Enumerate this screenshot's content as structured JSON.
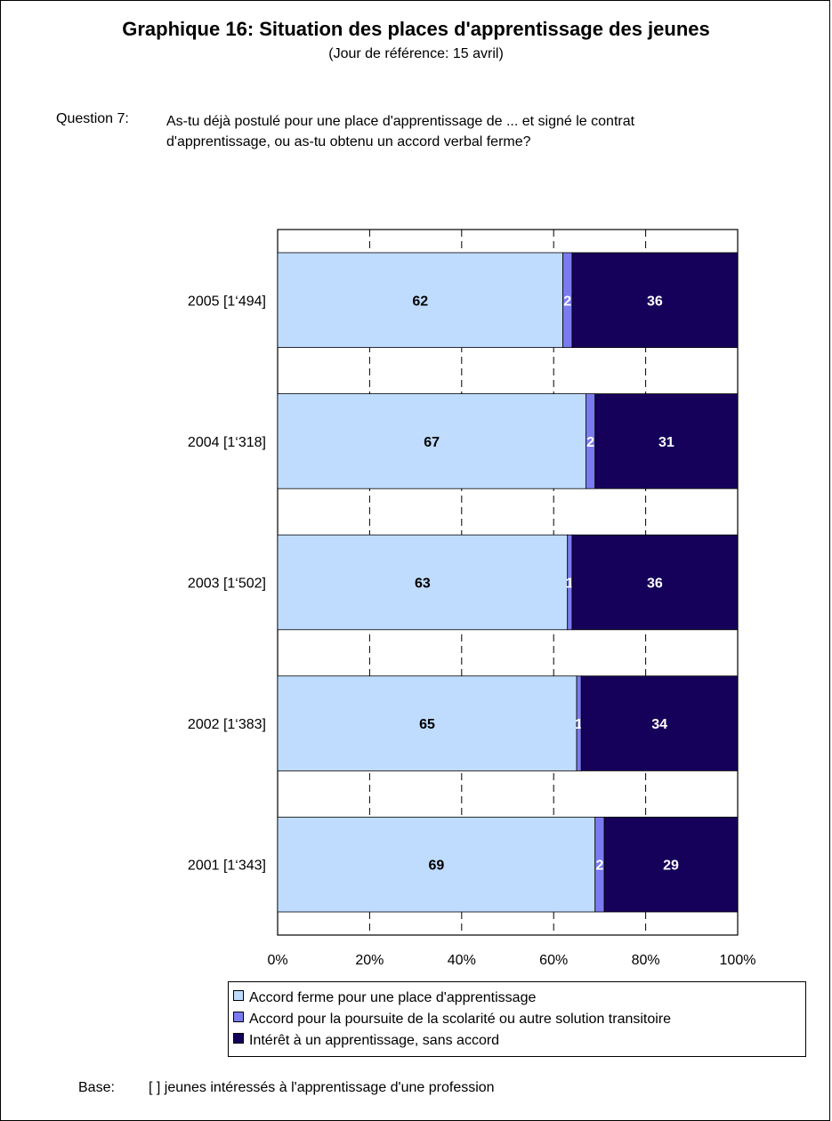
{
  "chart_data": {
    "type": "bar",
    "orientation": "horizontal",
    "stacked": true,
    "title": "Graphique 16: Situation des places d'apprentissage des jeunes",
    "subtitle": "(Jour de référence: 15 avril)",
    "categories": [
      "2005 [1‘494]",
      "2004 [1‘318]",
      "2003 [1‘502]",
      "2002 [1‘383]",
      "2001 [1‘343]"
    ],
    "series": [
      {
        "name": "Accord ferme pour une place d'apprentissage",
        "color": "#bfdcff",
        "label_color": "#000000",
        "values": [
          62,
          67,
          63,
          65,
          69
        ]
      },
      {
        "name": "Accord pour la poursuite de la scolarité ou autre solution transitoire",
        "color": "#7b7bf0",
        "label_color": "#ffffff",
        "values": [
          2,
          2,
          1,
          1,
          2
        ]
      },
      {
        "name": "Intérêt à un apprentissage, sans accord",
        "color": "#15005a",
        "label_color": "#ffffff",
        "values": [
          36,
          31,
          36,
          34,
          29
        ]
      }
    ],
    "xlim": [
      0,
      100
    ],
    "xticks": [
      "0%",
      "20%",
      "40%",
      "60%",
      "80%",
      "100%"
    ],
    "grid": true,
    "legend_position": "bottom"
  },
  "question": {
    "label": "Question 7:",
    "text": "As-tu déjà postulé pour une place d'apprentissage de ... et signé le contrat d'apprentissage, ou as-tu obtenu un accord verbal ferme?"
  },
  "base": {
    "label": "Base:",
    "text": "[ ] jeunes intéressés à l'apprentissage d'une profession"
  }
}
